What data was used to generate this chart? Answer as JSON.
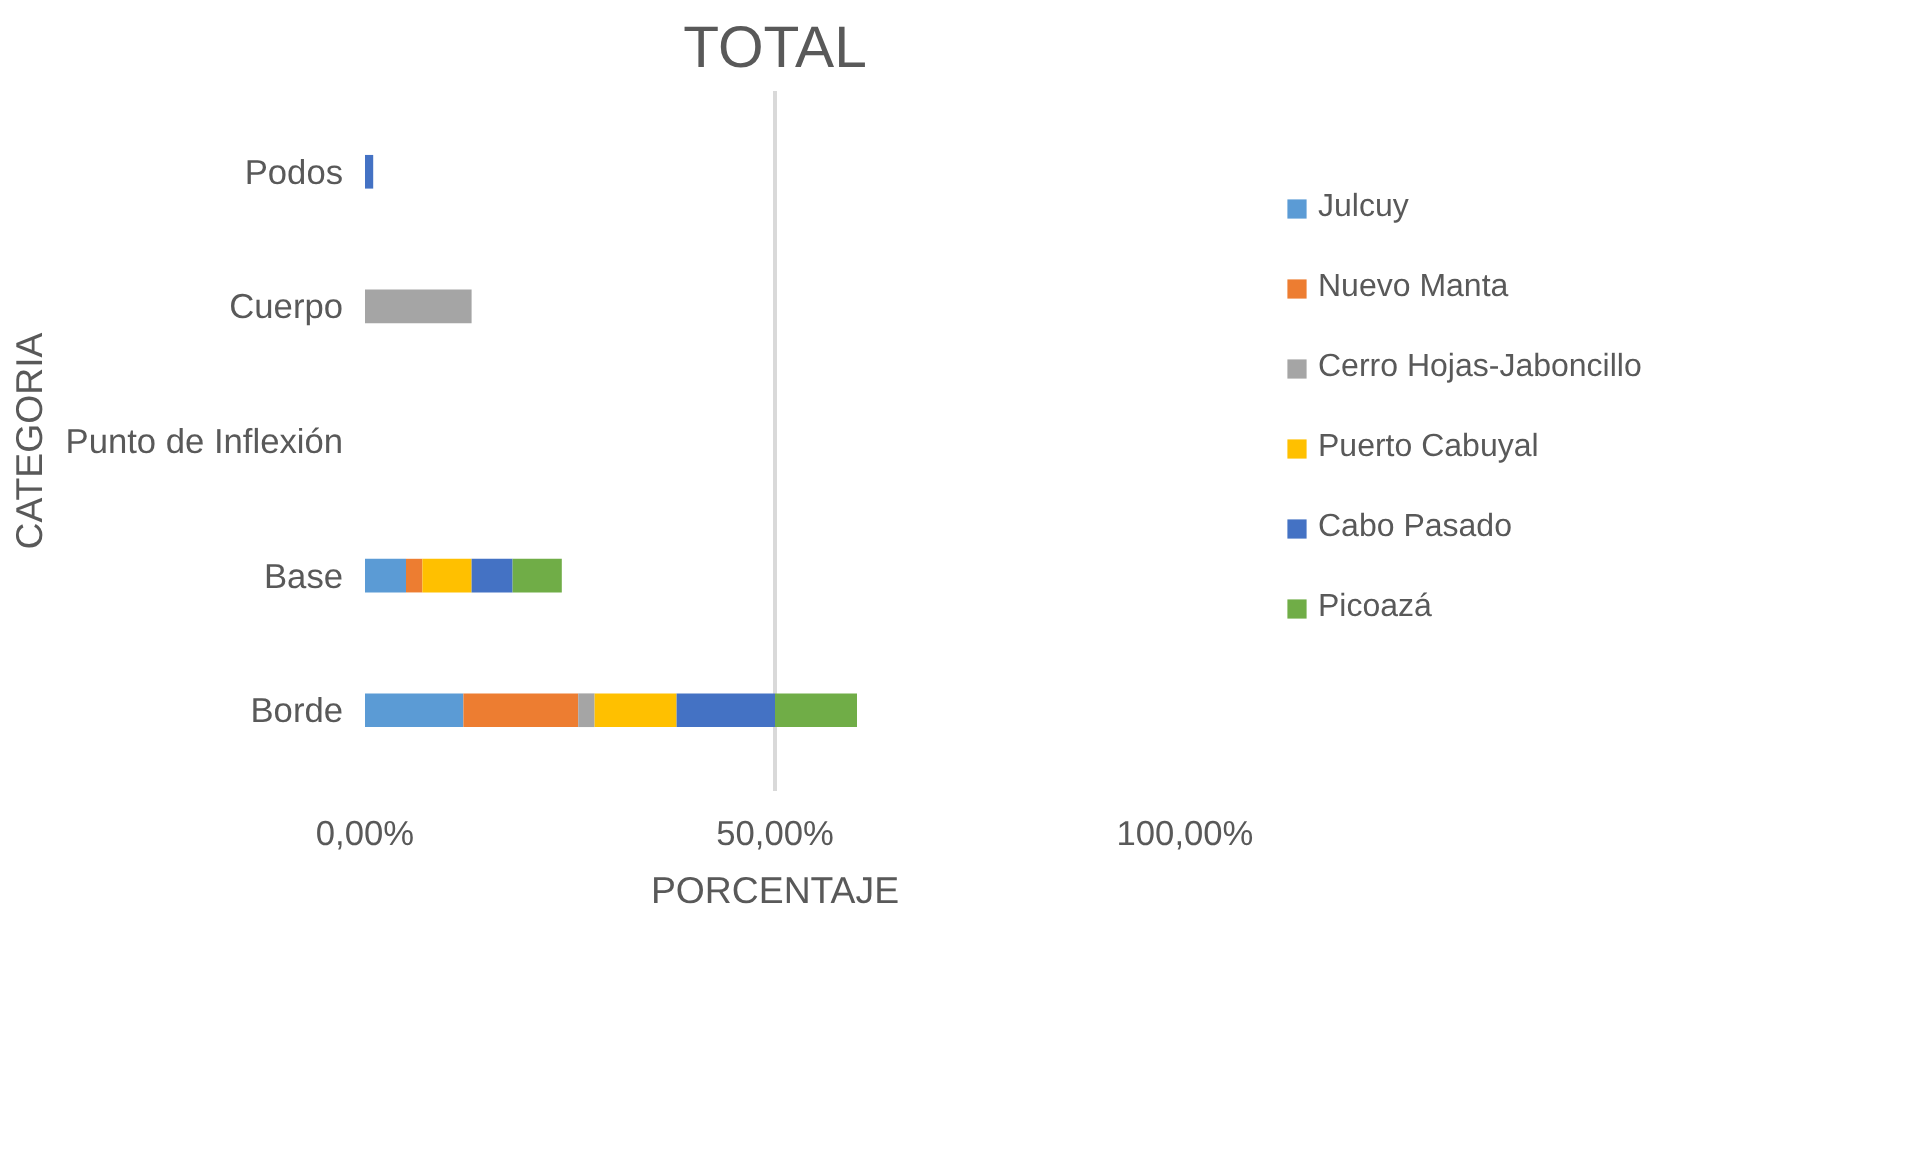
{
  "chart_data": {
    "type": "bar",
    "orientation": "horizontal",
    "stacked": true,
    "title": "TOTAL",
    "xlabel": "PORCENTAJE",
    "ylabel": "CATEGORIA",
    "categories": [
      "Podos",
      "Cuerpo",
      "Punto de Inflexión",
      "Base",
      "Borde"
    ],
    "series": [
      {
        "name": "Julcuy",
        "color": "#5b9bd5",
        "values": [
          0,
          0,
          0,
          5,
          12
        ]
      },
      {
        "name": "Nuevo Manta",
        "color": "#ed7d31",
        "values": [
          0,
          0,
          0,
          2,
          14
        ]
      },
      {
        "name": "Cerro Hojas-Jaboncillo",
        "color": "#a5a5a5",
        "values": [
          0,
          13,
          0,
          0,
          2
        ]
      },
      {
        "name": "Puerto Cabuyal",
        "color": "#ffc000",
        "values": [
          0,
          0,
          0,
          6,
          10
        ]
      },
      {
        "name": "Cabo Pasado",
        "color": "#4472c4",
        "values": [
          1,
          0,
          0,
          5,
          12
        ]
      },
      {
        "name": "Picoazá",
        "color": "#70ad47",
        "values": [
          0,
          0,
          0,
          6,
          10
        ]
      }
    ],
    "xlim": [
      0,
      100
    ],
    "xticks": [
      {
        "value": 0,
        "label": "0,00%"
      },
      {
        "value": 50,
        "label": "50,00%"
      },
      {
        "value": 100,
        "label": "100,00%"
      }
    ],
    "grid": "x",
    "legend": "right"
  }
}
